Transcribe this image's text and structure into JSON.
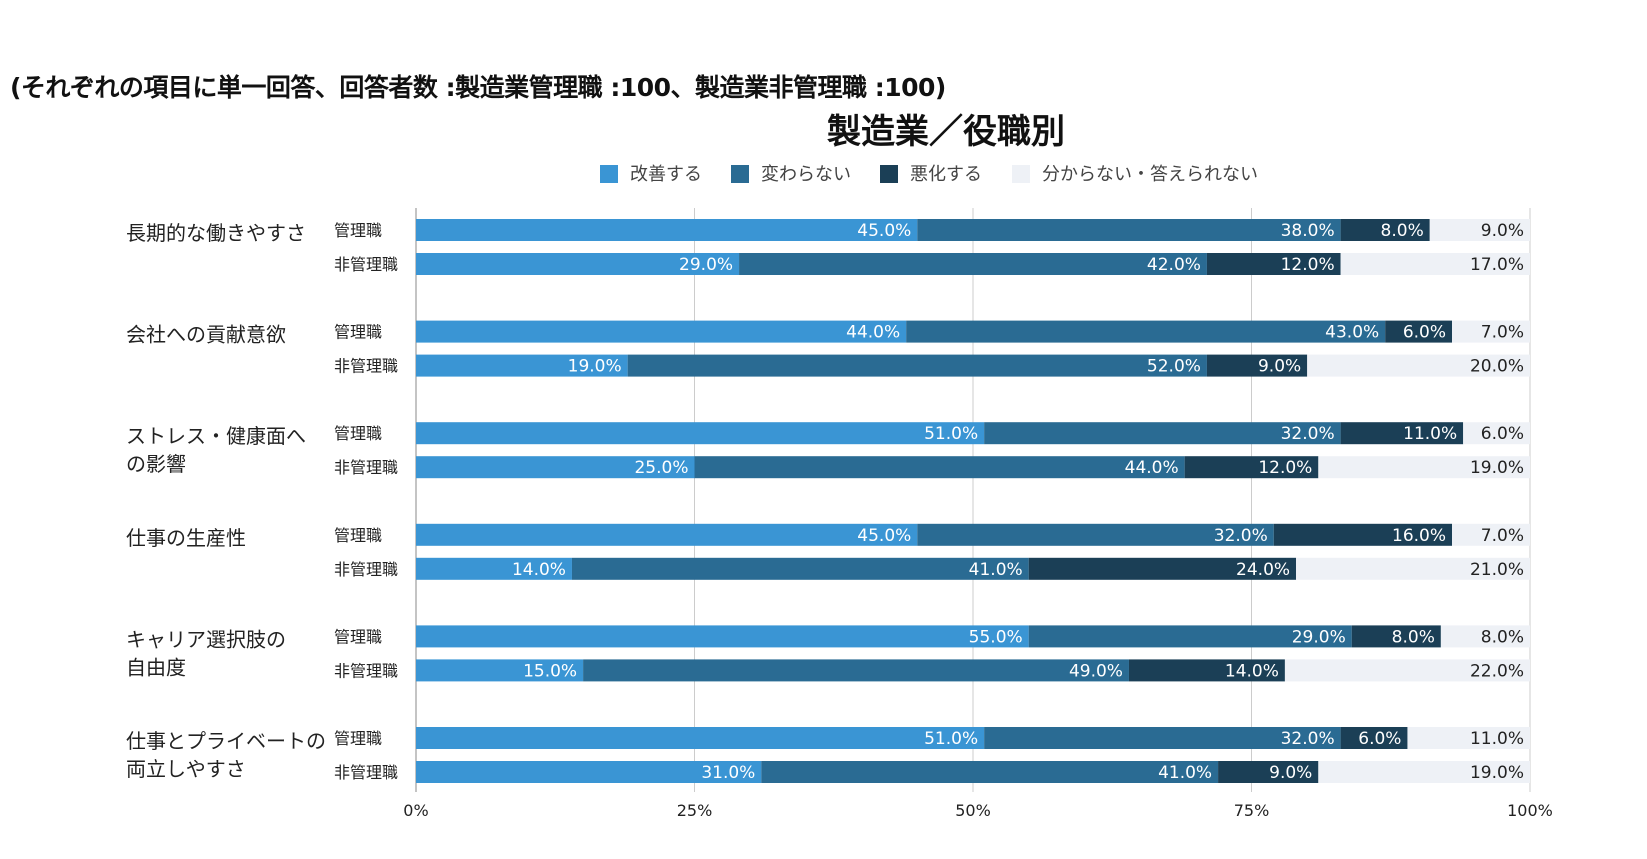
{
  "note": "(それぞれの項目に単一回答、回答者数 :製造業管理職 :100、製造業非管理職 :100)",
  "colors": {
    "improve": "#3A95D4",
    "nochange": "#2A6B93",
    "worsen": "#1B3F56",
    "unknown": "#EEF1F6",
    "grid": "#cccccc"
  },
  "chart_data": {
    "type": "bar",
    "orientation": "horizontal",
    "stacked": "percent",
    "title": "製造業／役職別",
    "legend": {
      "placement": "top",
      "items": [
        "改善する",
        "変わらない",
        "悪化する",
        "分からない・答えられない"
      ]
    },
    "x_ticks": [
      "0%",
      "25%",
      "50%",
      "75%",
      "100%"
    ],
    "xlim": [
      0,
      100
    ],
    "grid": true,
    "groups": [
      {
        "label": [
          "長期的な働きやすさ"
        ],
        "rows": [
          {
            "role": "管理職",
            "values": [
              45.0,
              38.0,
              8.0,
              9.0
            ],
            "labels": [
              "45.0%",
              "38.0%",
              "8.0%",
              "9.0%"
            ]
          },
          {
            "role": "非管理職",
            "values": [
              29.0,
              42.0,
              12.0,
              17.0
            ],
            "labels": [
              "29.0%",
              "42.0%",
              "12.0%",
              "17.0%"
            ]
          }
        ]
      },
      {
        "label": [
          "会社への貢献意欲"
        ],
        "rows": [
          {
            "role": "管理職",
            "values": [
              44.0,
              43.0,
              6.0,
              7.0
            ],
            "labels": [
              "44.0%",
              "43.0%",
              "6.0%",
              "7.0%"
            ]
          },
          {
            "role": "非管理職",
            "values": [
              19.0,
              52.0,
              9.0,
              20.0
            ],
            "labels": [
              "19.0%",
              "52.0%",
              "9.0%",
              "20.0%"
            ]
          }
        ]
      },
      {
        "label": [
          "ストレス・健康面へ",
          "の影響"
        ],
        "rows": [
          {
            "role": "管理職",
            "values": [
              51.0,
              32.0,
              11.0,
              6.0
            ],
            "labels": [
              "51.0%",
              "32.0%",
              "11.0%",
              "6.0%"
            ]
          },
          {
            "role": "非管理職",
            "values": [
              25.0,
              44.0,
              12.0,
              19.0
            ],
            "labels": [
              "25.0%",
              "44.0%",
              "12.0%",
              "19.0%"
            ]
          }
        ]
      },
      {
        "label": [
          "仕事の生産性"
        ],
        "rows": [
          {
            "role": "管理職",
            "values": [
              45.0,
              32.0,
              16.0,
              7.0
            ],
            "labels": [
              "45.0%",
              "32.0%",
              "16.0%",
              "7.0%"
            ]
          },
          {
            "role": "非管理職",
            "values": [
              14.0,
              41.0,
              24.0,
              21.0
            ],
            "labels": [
              "14.0%",
              "41.0%",
              "24.0%",
              "21.0%"
            ]
          }
        ]
      },
      {
        "label": [
          "キャリア選択肢の",
          "自由度"
        ],
        "rows": [
          {
            "role": "管理職",
            "values": [
              55.0,
              29.0,
              8.0,
              8.0
            ],
            "labels": [
              "55.0%",
              "29.0%",
              "8.0%",
              "8.0%"
            ]
          },
          {
            "role": "非管理職",
            "values": [
              15.0,
              49.0,
              14.0,
              22.0
            ],
            "labels": [
              "15.0%",
              "49.0%",
              "14.0%",
              "22.0%"
            ]
          }
        ]
      },
      {
        "label": [
          "仕事とプライベートの",
          "両立しやすさ"
        ],
        "rows": [
          {
            "role": "管理職",
            "values": [
              51.0,
              32.0,
              6.0,
              11.0
            ],
            "labels": [
              "51.0%",
              "32.0%",
              "6.0%",
              "11.0%"
            ]
          },
          {
            "role": "非管理職",
            "values": [
              31.0,
              41.0,
              9.0,
              19.0
            ],
            "labels": [
              "31.0%",
              "41.0%",
              "9.0%",
              "19.0%"
            ]
          }
        ]
      }
    ]
  }
}
